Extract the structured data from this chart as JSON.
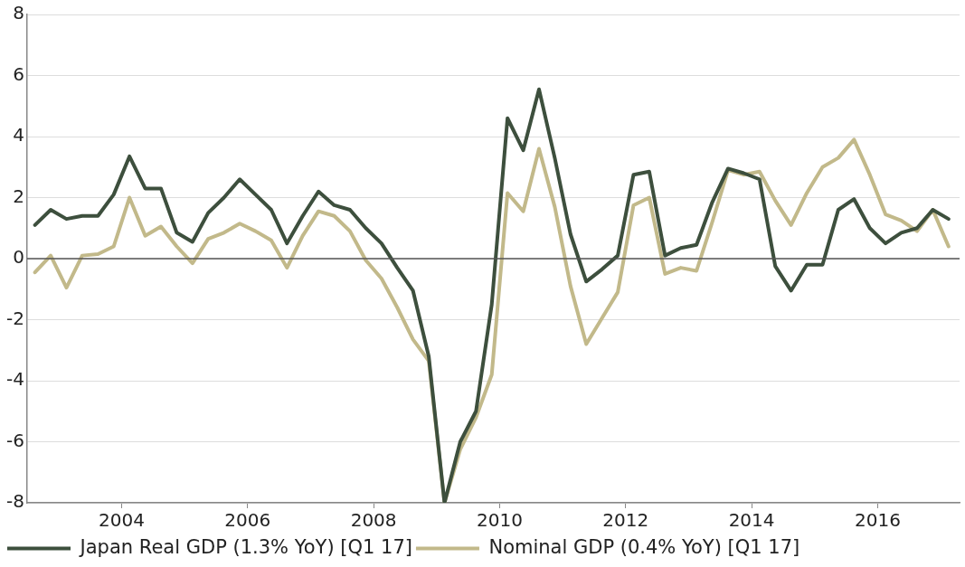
{
  "chart_data": {
    "type": "line",
    "x": [
      2002.625,
      2002.875,
      2003.125,
      2003.375,
      2003.625,
      2003.875,
      2004.125,
      2004.375,
      2004.625,
      2004.875,
      2005.125,
      2005.375,
      2005.625,
      2005.875,
      2006.125,
      2006.375,
      2006.625,
      2006.875,
      2007.125,
      2007.375,
      2007.625,
      2007.875,
      2008.125,
      2008.375,
      2008.625,
      2008.875,
      2009.125,
      2009.375,
      2009.625,
      2009.875,
      2010.125,
      2010.375,
      2010.625,
      2010.875,
      2011.125,
      2011.375,
      2011.625,
      2011.875,
      2012.125,
      2012.375,
      2012.625,
      2012.875,
      2013.125,
      2013.375,
      2013.625,
      2013.875,
      2014.125,
      2014.375,
      2014.625,
      2014.875,
      2015.125,
      2015.375,
      2015.625,
      2015.875,
      2016.125,
      2016.375,
      2016.625,
      2016.875,
      2017.125
    ],
    "series": [
      {
        "name": "Japan Real GDP (1.3% YoY) [Q1 17]",
        "color": "#3d4f3d",
        "values": [
          1.1,
          1.6,
          1.3,
          1.4,
          1.4,
          2.1,
          3.35,
          2.3,
          2.3,
          0.85,
          0.55,
          1.5,
          2.0,
          2.6,
          2.1,
          1.6,
          0.5,
          1.4,
          2.2,
          1.75,
          1.6,
          1.0,
          0.5,
          -0.3,
          -1.05,
          -3.2,
          -8,
          -6.0,
          -5.0,
          -1.5,
          4.6,
          3.55,
          5.55,
          3.3,
          0.8,
          -0.75,
          -0.35,
          0.1,
          2.75,
          2.85,
          0.1,
          0.35,
          0.45,
          1.85,
          2.95,
          2.8,
          2.6,
          -0.25,
          -1.05,
          -0.2,
          -0.2,
          1.6,
          1.95,
          1.0,
          0.5,
          0.85,
          1.0,
          1.6,
          1.3
        ]
      },
      {
        "name": "Nominal GDP (0.4% YoY) [Q1 17]",
        "color": "#c2b98a",
        "values": [
          -0.45,
          0.1,
          -0.95,
          0.1,
          0.15,
          0.4,
          2.0,
          0.75,
          1.05,
          0.4,
          -0.15,
          0.65,
          0.85,
          1.15,
          0.9,
          0.6,
          -0.3,
          0.75,
          1.55,
          1.4,
          0.9,
          -0.05,
          -0.65,
          -1.6,
          -2.65,
          -3.35,
          -8,
          -6.25,
          -5.2,
          -3.8,
          2.15,
          1.55,
          3.6,
          1.7,
          -0.9,
          -2.8,
          -1.95,
          -1.1,
          1.75,
          2.0,
          -0.5,
          -0.3,
          -0.4,
          1.2,
          2.9,
          2.75,
          2.85,
          1.9,
          1.1,
          2.15,
          3.0,
          3.3,
          3.9,
          2.75,
          1.45,
          1.25,
          0.9,
          1.6,
          0.4
        ]
      }
    ],
    "xlim": [
      2002.5,
      2017.3
    ],
    "xticks": [
      2004,
      2006,
      2008,
      2010,
      2012,
      2014,
      2016
    ],
    "ylim": [
      -8,
      8
    ],
    "yticks": [
      -8,
      -6,
      -4,
      -2,
      0,
      2,
      4,
      6,
      8
    ],
    "ref_lines": [
      {
        "axis": "y",
        "value": 0,
        "color": "#555555"
      }
    ],
    "grid": "y",
    "legend": "bottom left",
    "marker": "none",
    "line_style": "solid"
  }
}
